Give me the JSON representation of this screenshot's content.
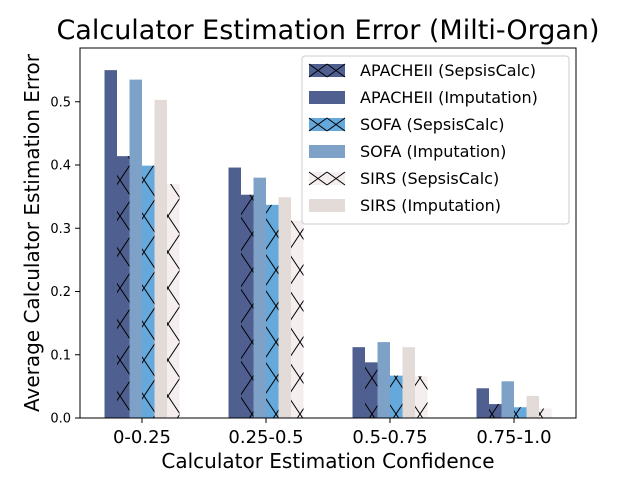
{
  "chart_data": {
    "type": "bar",
    "title": "Calculator Estimation Error (Milti-Organ)",
    "xlabel": "Calculator Estimation Confidence",
    "ylabel": "Average Calculator Estimation Error",
    "categories": [
      "0-0.25",
      "0.25-0.5",
      "0.5-0.75",
      "0.75-1.0"
    ],
    "ylim": [
      0,
      0.585
    ],
    "yticks": [
      "0.0",
      "0.1",
      "0.2",
      "0.3",
      "0.4",
      "0.5"
    ],
    "grid": false,
    "legend_position": "top-right",
    "series": [
      {
        "name": "APACHEII (Imputation)",
        "color": "#4f5f8f",
        "hatch": "none",
        "values": [
          0.55,
          0.396,
          0.112,
          0.047
        ]
      },
      {
        "name": "APACHEII (SepsisCalc)",
        "color": "#4f5f8f",
        "hatch": "x",
        "values": [
          0.414,
          0.353,
          0.088,
          0.022
        ]
      },
      {
        "name": "SOFA (Imputation)",
        "color": "#7ea1c7",
        "hatch": "none",
        "values": [
          0.535,
          0.38,
          0.12,
          0.058
        ]
      },
      {
        "name": "SOFA (SepsisCalc)",
        "color": "#64a8dc",
        "hatch": "x",
        "values": [
          0.399,
          0.337,
          0.067,
          0.017
        ]
      },
      {
        "name": "SIRS (Imputation)",
        "color": "#e2dbd8",
        "hatch": "none",
        "values": [
          0.503,
          0.349,
          0.112,
          0.035
        ]
      },
      {
        "name": "SIRS (SepsisCalc)",
        "color": "#f5eeee",
        "hatch": "x",
        "values": [
          0.37,
          0.312,
          0.066,
          0.015
        ]
      }
    ],
    "legend_entries": [
      {
        "name": "APACHEII (SepsisCalc)",
        "color": "#4f5f8f",
        "hatch": "x"
      },
      {
        "name": "APACHEII (Imputation)",
        "color": "#4f5f8f",
        "hatch": "none"
      },
      {
        "name": "SOFA (SepsisCalc)",
        "color": "#64a8dc",
        "hatch": "x"
      },
      {
        "name": "SOFA (Imputation)",
        "color": "#7ea1c7",
        "hatch": "none"
      },
      {
        "name": "SIRS (SepsisCalc)",
        "color": "#f5eeee",
        "hatch": "x"
      },
      {
        "name": "SIRS (Imputation)",
        "color": "#e2dbd8",
        "hatch": "none"
      }
    ]
  }
}
